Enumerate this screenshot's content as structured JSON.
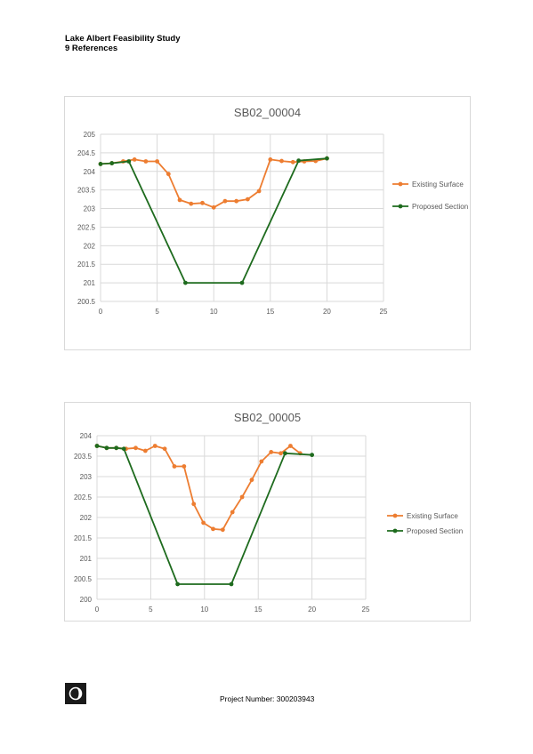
{
  "header": {
    "line1": "Lake Albert Feasibility Study",
    "line2": "9 References"
  },
  "footer": {
    "project_number": "Project Number: 300203943"
  },
  "colors": {
    "existing": "#ED7D31",
    "proposed": "#1E6B1E",
    "grid": "#d9d9d9",
    "axis_text": "#595959",
    "title_text": "#595959"
  },
  "chart_data": [
    {
      "type": "line",
      "title": "SB02_00004",
      "xlim": [
        0,
        25
      ],
      "xticks": [
        0,
        5,
        10,
        15,
        20,
        25
      ],
      "ylim": [
        200.5,
        205
      ],
      "yticks": [
        200.5,
        201,
        201.5,
        202,
        202.5,
        203,
        203.5,
        204,
        204.5,
        205
      ],
      "ytick_labels": [
        "200.5",
        "201",
        "201.5",
        "202",
        "202.5",
        "203",
        "203.5",
        "204",
        "204.5",
        "205"
      ],
      "grid": true,
      "legend_position": "right",
      "series": [
        {
          "name": "Existing Surface",
          "x": [
            0,
            1,
            2,
            3,
            4,
            5,
            6,
            7,
            8,
            9,
            10,
            11,
            12,
            13,
            14,
            15,
            16,
            17,
            18,
            19,
            20
          ],
          "y": [
            204.2,
            204.22,
            204.27,
            204.32,
            204.27,
            204.27,
            203.93,
            203.23,
            203.13,
            203.15,
            203.03,
            203.2,
            203.2,
            203.25,
            203.47,
            204.32,
            204.28,
            204.25,
            204.27,
            204.28,
            204.35
          ]
        },
        {
          "name": "Proposed Section",
          "x": [
            0,
            1,
            2.5,
            7.5,
            12.5,
            17.5,
            20
          ],
          "y": [
            204.2,
            204.22,
            204.27,
            201.0,
            201.0,
            204.29,
            204.35
          ]
        }
      ]
    },
    {
      "type": "line",
      "title": "SB02_00005",
      "xlim": [
        0,
        25
      ],
      "xticks": [
        0,
        5,
        10,
        15,
        20,
        25
      ],
      "ylim": [
        200,
        204
      ],
      "yticks": [
        200,
        200.5,
        201,
        201.5,
        202,
        202.5,
        203,
        203.5,
        204
      ],
      "ytick_labels": [
        "200",
        "200.5",
        "201",
        "201.5",
        "202",
        "202.5",
        "203",
        "203.5",
        "204"
      ],
      "grid": true,
      "legend_position": "right",
      "series": [
        {
          "name": "Existing Surface",
          "x": [
            0,
            0.9,
            1.8,
            2.7,
            3.6,
            4.5,
            5.4,
            6.3,
            7.2,
            8.1,
            9.0,
            9.9,
            10.8,
            11.7,
            12.6,
            13.5,
            14.4,
            15.3,
            16.2,
            17.1,
            18.0,
            18.9
          ],
          "y": [
            203.75,
            203.7,
            203.7,
            203.68,
            203.7,
            203.63,
            203.75,
            203.68,
            203.25,
            203.25,
            202.33,
            201.87,
            201.72,
            201.7,
            202.13,
            202.5,
            202.92,
            203.37,
            203.6,
            203.57,
            203.75,
            203.57
          ]
        },
        {
          "name": "Proposed Section",
          "x": [
            0,
            0.9,
            1.8,
            2.5,
            7.5,
            12.5,
            17.5,
            20
          ],
          "y": [
            203.75,
            203.7,
            203.7,
            203.68,
            200.37,
            200.37,
            203.57,
            203.53
          ]
        }
      ]
    }
  ]
}
